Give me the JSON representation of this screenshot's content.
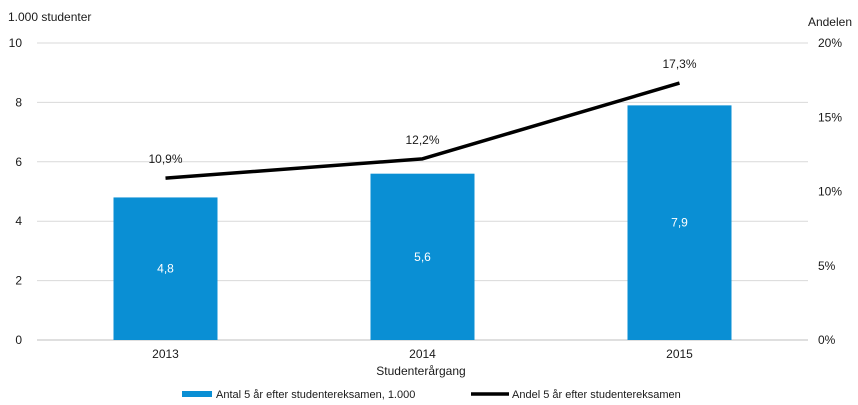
{
  "chart_data": {
    "type": "bar",
    "categories": [
      "2013",
      "2014",
      "2015"
    ],
    "xlabel": "Studenterårgang",
    "ylabel_left": "1.000 studenter",
    "ylabel_right": "Andelen",
    "ylim_left": [
      0,
      10
    ],
    "yticks_left": [
      "0",
      "2",
      "4",
      "6",
      "8",
      "10"
    ],
    "ylim_right": [
      0,
      20
    ],
    "yticks_right": [
      "0%",
      "5%",
      "10%",
      "15%",
      "20%"
    ],
    "grid": true,
    "legend_position": "bottom",
    "series": [
      {
        "name": "Antal 5 år efter studentereksamen, 1.000",
        "type": "bar",
        "axis": "left",
        "color": "#0a8fd4",
        "values": [
          4.8,
          5.6,
          7.9
        ],
        "labels": [
          "4,8",
          "5,6",
          "7,9"
        ]
      },
      {
        "name": "Andel 5 år efter studentereksamen",
        "type": "line",
        "axis": "right",
        "color": "#000000",
        "values": [
          10.9,
          12.2,
          17.3
        ],
        "labels": [
          "10,9%",
          "12,2%",
          "17,3%"
        ]
      }
    ]
  }
}
